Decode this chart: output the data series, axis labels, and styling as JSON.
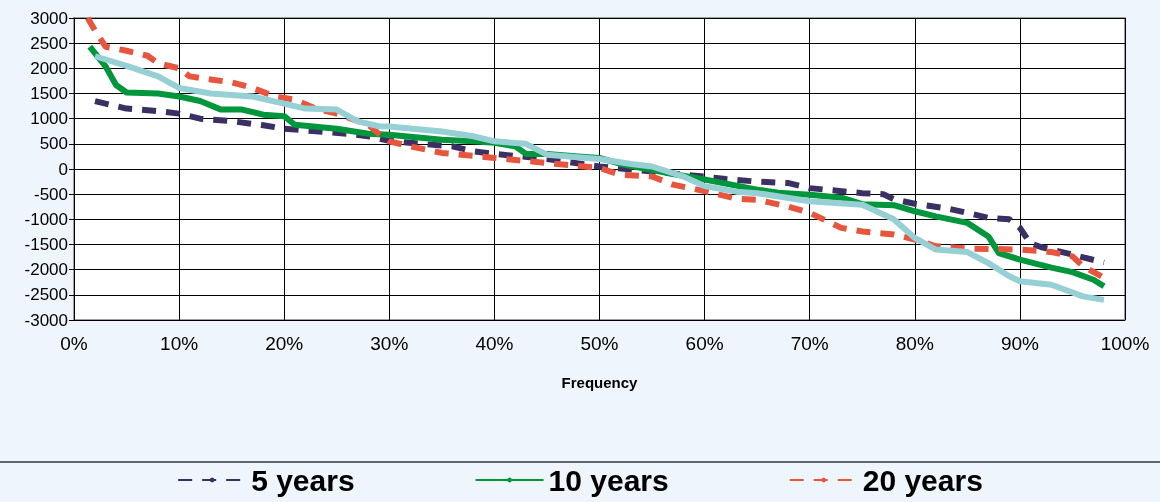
{
  "chart_data": {
    "type": "line",
    "xlabel": "Frequency",
    "xlim": [
      0,
      100
    ],
    "xticks": [
      {
        "value": 0,
        "label": "0%"
      },
      {
        "value": 10,
        "label": "10%"
      },
      {
        "value": 20,
        "label": "20%"
      },
      {
        "value": 30,
        "label": "30%"
      },
      {
        "value": 40,
        "label": "40%"
      },
      {
        "value": 50,
        "label": "50%"
      },
      {
        "value": 60,
        "label": "60%"
      },
      {
        "value": 70,
        "label": "70%"
      },
      {
        "value": 80,
        "label": "80%"
      },
      {
        "value": 90,
        "label": "90%"
      },
      {
        "value": 100,
        "label": "100%"
      }
    ],
    "ylim": [
      -3000,
      3000
    ],
    "yticks": [
      -3000,
      -2500,
      -2000,
      -1500,
      -1000,
      -500,
      0,
      500,
      1000,
      1500,
      2000,
      2500,
      3000
    ],
    "grid": true,
    "legend": "bottom",
    "marker": "none",
    "series": [
      {
        "name": "5 years",
        "color": "#3b2f63",
        "line_style": "dashed",
        "x": [
          2,
          5,
          8,
          10,
          12,
          15,
          18,
          20,
          23,
          26,
          28,
          30,
          33,
          36,
          38,
          40,
          45,
          50,
          55,
          60,
          62,
          65,
          68,
          70,
          75,
          77,
          78,
          80,
          83,
          85,
          87,
          89,
          90,
          91,
          92,
          95,
          98
        ],
        "values": [
          1350,
          1200,
          1150,
          1100,
          1000,
          950,
          870,
          800,
          750,
          700,
          650,
          560,
          500,
          450,
          350,
          300,
          200,
          50,
          -50,
          -150,
          -200,
          -250,
          -280,
          -380,
          -480,
          -500,
          -600,
          -690,
          -780,
          -870,
          -970,
          -1000,
          -1170,
          -1480,
          -1550,
          -1700,
          -1860
        ]
      },
      {
        "name": "10 years",
        "color": "#00963c",
        "line_style": "solid",
        "x": [
          1.5,
          3,
          4,
          5,
          8,
          10,
          12,
          14,
          16,
          18,
          20,
          21,
          25,
          28,
          30,
          35,
          38,
          40,
          42,
          43,
          45,
          48,
          50,
          52,
          55,
          57,
          60,
          65,
          67,
          70,
          73,
          75,
          78,
          80,
          82,
          85,
          87,
          88,
          90,
          93,
          95,
          97,
          98
        ],
        "values": [
          2430,
          2040,
          1670,
          1520,
          1500,
          1440,
          1350,
          1180,
          1180,
          1080,
          1050,
          880,
          800,
          700,
          680,
          580,
          550,
          520,
          450,
          300,
          300,
          250,
          220,
          100,
          -20,
          -100,
          -210,
          -410,
          -470,
          -510,
          -570,
          -700,
          -720,
          -840,
          -940,
          -1070,
          -1340,
          -1670,
          -1800,
          -1960,
          -2050,
          -2200,
          -2330
        ]
      },
      {
        "name": "20 years",
        "color": "#e8553e",
        "line_style": "dashed",
        "x": [
          1.3,
          2,
          3,
          5,
          7,
          8,
          10,
          11,
          13,
          15,
          17,
          19,
          21,
          23,
          25,
          28,
          29,
          30,
          32,
          35,
          40,
          45,
          50,
          52,
          55,
          57,
          60,
          63,
          65,
          68,
          70,
          73,
          75,
          78,
          80,
          82,
          85,
          90,
          93,
          95,
          96,
          98
        ],
        "values": [
          3000,
          2750,
          2430,
          2350,
          2250,
          2100,
          2000,
          1840,
          1780,
          1720,
          1610,
          1450,
          1375,
          1200,
          1100,
          880,
          700,
          550,
          450,
          320,
          220,
          120,
          20,
          -115,
          -150,
          -310,
          -440,
          -590,
          -610,
          -750,
          -870,
          -1170,
          -1240,
          -1300,
          -1400,
          -1535,
          -1580,
          -1600,
          -1650,
          -1735,
          -1930,
          -2160
        ]
      },
      {
        "color": "#96d0d4",
        "line_style": "solid",
        "x": [
          2,
          5,
          8,
          10,
          13,
          17,
          20,
          22,
          25,
          27,
          29,
          30,
          35,
          38,
          40,
          43,
          45,
          50,
          53,
          55,
          58,
          60,
          63,
          65,
          70,
          75,
          78,
          80,
          82,
          85,
          87,
          89,
          90,
          93,
          96,
          98
        ],
        "values": [
          2240,
          2050,
          1840,
          1610,
          1500,
          1440,
          1300,
          1200,
          1180,
          945,
          850,
          845,
          745,
          650,
          550,
          500,
          285,
          200,
          100,
          50,
          -150,
          -340,
          -450,
          -480,
          -640,
          -710,
          -1000,
          -1370,
          -1600,
          -1650,
          -1870,
          -2130,
          -2230,
          -2300,
          -2530,
          -2600
        ]
      }
    ]
  }
}
